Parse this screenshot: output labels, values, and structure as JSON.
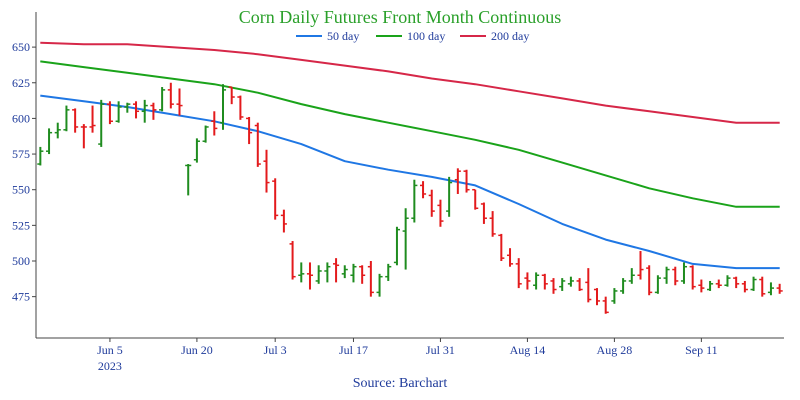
{
  "chart_data": {
    "type": "ohlc_with_moving_averages",
    "title": "Corn Daily Futures Front Month Continuous",
    "source": "Source: Barchart",
    "ylim": [
      446,
      662
    ],
    "yticks": [
      475,
      500,
      525,
      550,
      575,
      600,
      625,
      650
    ],
    "grid": false,
    "legend_position": "top",
    "x_tick_labels": [
      {
        "label": "Jun 5",
        "index": 8
      },
      {
        "label": "Jun 20",
        "index": 18
      },
      {
        "label": "Jul 3",
        "index": 27
      },
      {
        "label": "Jul 17",
        "index": 36
      },
      {
        "label": "Jul 31",
        "index": 46
      },
      {
        "label": "Aug 14",
        "index": 56
      },
      {
        "label": "Aug 28",
        "index": 66
      },
      {
        "label": "Sep 11",
        "index": 76
      }
    ],
    "year_label": {
      "label": "2023",
      "index": 8
    },
    "colors": {
      "up": "#1f8c1f",
      "down": "#e31a1c",
      "ma50": "#1f77e4",
      "ma100": "#1aa31a",
      "ma200": "#d62748",
      "text": "#1f3b9b",
      "title": "#2aa02a",
      "axis": "#444444"
    },
    "bars": [
      {
        "date": "2023-05-26",
        "o": 568,
        "h": 580,
        "l": 567,
        "c": 577,
        "dir": "up"
      },
      {
        "date": "2023-05-29",
        "o": 577,
        "h": 593,
        "l": 575,
        "c": 590,
        "dir": "up"
      },
      {
        "date": "2023-05-30",
        "o": 590,
        "h": 597,
        "l": 586,
        "c": 592,
        "dir": "up"
      },
      {
        "date": "2023-05-31",
        "o": 592,
        "h": 609,
        "l": 591,
        "c": 606,
        "dir": "up"
      },
      {
        "date": "2023-06-01",
        "o": 606,
        "h": 607,
        "l": 590,
        "c": 594,
        "dir": "down"
      },
      {
        "date": "2023-06-02",
        "o": 594,
        "h": 596,
        "l": 579,
        "c": 594,
        "dir": "down"
      },
      {
        "date": "2023-06-05",
        "o": 594,
        "h": 609,
        "l": 590,
        "c": 595,
        "dir": "down"
      },
      {
        "date": "2023-06-06",
        "o": 582,
        "h": 613,
        "l": 580,
        "c": 610,
        "dir": "up"
      },
      {
        "date": "2023-06-07",
        "o": 610,
        "h": 612,
        "l": 596,
        "c": 598,
        "dir": "down"
      },
      {
        "date": "2023-06-08",
        "o": 598,
        "h": 612,
        "l": 597,
        "c": 608,
        "dir": "up"
      },
      {
        "date": "2023-06-09",
        "o": 608,
        "h": 611,
        "l": 604,
        "c": 610,
        "dir": "up"
      },
      {
        "date": "2023-06-12",
        "o": 610,
        "h": 612,
        "l": 600,
        "c": 605,
        "dir": "down"
      },
      {
        "date": "2023-06-13",
        "o": 605,
        "h": 613,
        "l": 597,
        "c": 609,
        "dir": "up"
      },
      {
        "date": "2023-06-14",
        "o": 609,
        "h": 611,
        "l": 599,
        "c": 606,
        "dir": "down"
      },
      {
        "date": "2023-06-15",
        "o": 606,
        "h": 622,
        "l": 605,
        "c": 620,
        "dir": "up"
      },
      {
        "date": "2023-06-16",
        "o": 620,
        "h": 625,
        "l": 607,
        "c": 610,
        "dir": "down"
      },
      {
        "date": "2023-06-19",
        "o": 610,
        "h": 621,
        "l": 602,
        "c": 609,
        "dir": "down"
      },
      {
        "date": "2023-06-20",
        "o": 567,
        "h": 568,
        "l": 546,
        "c": 567,
        "dir": "up"
      },
      {
        "date": "2023-06-21",
        "o": 571,
        "h": 586,
        "l": 569,
        "c": 584,
        "dir": "up"
      },
      {
        "date": "2023-06-22",
        "o": 584,
        "h": 595,
        "l": 583,
        "c": 594,
        "dir": "up"
      },
      {
        "date": "2023-06-23",
        "o": 598,
        "h": 605,
        "l": 588,
        "c": 593,
        "dir": "down"
      },
      {
        "date": "2023-06-26",
        "o": 597,
        "h": 624,
        "l": 592,
        "c": 620,
        "dir": "up"
      },
      {
        "date": "2023-06-27",
        "o": 622,
        "h": 622,
        "l": 610,
        "c": 615,
        "dir": "down"
      },
      {
        "date": "2023-06-28",
        "o": 615,
        "h": 616,
        "l": 599,
        "c": 601,
        "dir": "down"
      },
      {
        "date": "2023-06-29",
        "o": 600,
        "h": 601,
        "l": 582,
        "c": 590,
        "dir": "down"
      },
      {
        "date": "2023-06-30",
        "o": 595,
        "h": 597,
        "l": 566,
        "c": 568,
        "dir": "down"
      },
      {
        "date": "2023-07-03",
        "o": 570,
        "h": 578,
        "l": 548,
        "c": 555,
        "dir": "down"
      },
      {
        "date": "2023-07-05",
        "o": 556,
        "h": 558,
        "l": 529,
        "c": 532,
        "dir": "down"
      },
      {
        "date": "2023-07-06",
        "o": 532,
        "h": 536,
        "l": 520,
        "c": 526,
        "dir": "down"
      },
      {
        "date": "2023-07-07",
        "o": 512,
        "h": 514,
        "l": 487,
        "c": 489,
        "dir": "down"
      },
      {
        "date": "2023-07-10",
        "o": 490,
        "h": 499,
        "l": 485,
        "c": 491,
        "dir": "up"
      },
      {
        "date": "2023-07-11",
        "o": 491,
        "h": 499,
        "l": 480,
        "c": 490,
        "dir": "down"
      },
      {
        "date": "2023-07-12",
        "o": 486,
        "h": 497,
        "l": 484,
        "c": 493,
        "dir": "up"
      },
      {
        "date": "2023-07-13",
        "o": 493,
        "h": 499,
        "l": 485,
        "c": 496,
        "dir": "up"
      },
      {
        "date": "2023-07-14",
        "o": 498,
        "h": 502,
        "l": 485,
        "c": 497,
        "dir": "down"
      },
      {
        "date": "2023-07-17",
        "o": 491,
        "h": 497,
        "l": 488,
        "c": 494,
        "dir": "up"
      },
      {
        "date": "2023-07-18",
        "o": 490,
        "h": 498,
        "l": 485,
        "c": 496,
        "dir": "up"
      },
      {
        "date": "2023-07-19",
        "o": 496,
        "h": 497,
        "l": 484,
        "c": 490,
        "dir": "down"
      },
      {
        "date": "2023-07-20",
        "o": 496,
        "h": 500,
        "l": 475,
        "c": 478,
        "dir": "down"
      },
      {
        "date": "2023-07-21",
        "o": 478,
        "h": 491,
        "l": 475,
        "c": 489,
        "dir": "up"
      },
      {
        "date": "2023-07-24",
        "o": 489,
        "h": 498,
        "l": 486,
        "c": 496,
        "dir": "up"
      },
      {
        "date": "2023-07-25",
        "o": 499,
        "h": 524,
        "l": 497,
        "c": 522,
        "dir": "up"
      },
      {
        "date": "2023-07-26",
        "o": 521,
        "h": 537,
        "l": 494,
        "c": 530,
        "dir": "up"
      },
      {
        "date": "2023-07-27",
        "o": 530,
        "h": 557,
        "l": 527,
        "c": 553,
        "dir": "up"
      },
      {
        "date": "2023-07-28",
        "o": 553,
        "h": 556,
        "l": 544,
        "c": 547,
        "dir": "down"
      },
      {
        "date": "2023-07-31",
        "o": 546,
        "h": 550,
        "l": 531,
        "c": 535,
        "dir": "down"
      },
      {
        "date": "2023-08-01",
        "o": 539,
        "h": 543,
        "l": 524,
        "c": 528,
        "dir": "down"
      },
      {
        "date": "2023-08-02",
        "o": 535,
        "h": 559,
        "l": 531,
        "c": 555,
        "dir": "up"
      },
      {
        "date": "2023-08-03",
        "o": 557,
        "h": 565,
        "l": 547,
        "c": 563,
        "dir": "down"
      },
      {
        "date": "2023-08-04",
        "o": 563,
        "h": 564,
        "l": 548,
        "c": 550,
        "dir": "down"
      },
      {
        "date": "2023-08-07",
        "o": 550,
        "h": 550,
        "l": 536,
        "c": 537,
        "dir": "down"
      },
      {
        "date": "2023-08-08",
        "o": 540,
        "h": 541,
        "l": 526,
        "c": 530,
        "dir": "down"
      },
      {
        "date": "2023-08-09",
        "o": 530,
        "h": 535,
        "l": 517,
        "c": 519,
        "dir": "down"
      },
      {
        "date": "2023-08-10",
        "o": 518,
        "h": 519,
        "l": 500,
        "c": 502,
        "dir": "down"
      },
      {
        "date": "2023-08-11",
        "o": 504,
        "h": 509,
        "l": 496,
        "c": 498,
        "dir": "down"
      },
      {
        "date": "2023-08-14",
        "o": 498,
        "h": 502,
        "l": 481,
        "c": 484,
        "dir": "down"
      },
      {
        "date": "2023-08-15",
        "o": 488,
        "h": 492,
        "l": 480,
        "c": 486,
        "dir": "down"
      },
      {
        "date": "2023-08-16",
        "o": 483,
        "h": 492,
        "l": 480,
        "c": 490,
        "dir": "up"
      },
      {
        "date": "2023-08-17",
        "o": 490,
        "h": 491,
        "l": 480,
        "c": 484,
        "dir": "down"
      },
      {
        "date": "2023-08-18",
        "o": 486,
        "h": 488,
        "l": 477,
        "c": 480,
        "dir": "down"
      },
      {
        "date": "2023-08-21",
        "o": 482,
        "h": 488,
        "l": 479,
        "c": 486,
        "dir": "up"
      },
      {
        "date": "2023-08-22",
        "o": 484,
        "h": 489,
        "l": 482,
        "c": 486,
        "dir": "up"
      },
      {
        "date": "2023-08-23",
        "o": 486,
        "h": 488,
        "l": 479,
        "c": 480,
        "dir": "down"
      },
      {
        "date": "2023-08-24",
        "o": 485,
        "h": 495,
        "l": 471,
        "c": 473,
        "dir": "down"
      },
      {
        "date": "2023-08-25",
        "o": 480,
        "h": 481,
        "l": 469,
        "c": 472,
        "dir": "down"
      },
      {
        "date": "2023-08-28",
        "o": 472,
        "h": 475,
        "l": 463,
        "c": 464,
        "dir": "down"
      },
      {
        "date": "2023-08-29",
        "o": 472,
        "h": 481,
        "l": 470,
        "c": 479,
        "dir": "up"
      },
      {
        "date": "2023-08-30",
        "o": 479,
        "h": 488,
        "l": 477,
        "c": 486,
        "dir": "up"
      },
      {
        "date": "2023-08-31",
        "o": 486,
        "h": 495,
        "l": 484,
        "c": 490,
        "dir": "up"
      },
      {
        "date": "2023-09-01",
        "o": 490,
        "h": 507,
        "l": 487,
        "c": 494,
        "dir": "down"
      },
      {
        "date": "2023-09-05",
        "o": 495,
        "h": 497,
        "l": 476,
        "c": 478,
        "dir": "down"
      },
      {
        "date": "2023-09-06",
        "o": 478,
        "h": 490,
        "l": 477,
        "c": 488,
        "dir": "up"
      },
      {
        "date": "2023-09-07",
        "o": 488,
        "h": 496,
        "l": 484,
        "c": 494,
        "dir": "up"
      },
      {
        "date": "2023-09-08",
        "o": 494,
        "h": 496,
        "l": 483,
        "c": 486,
        "dir": "down"
      },
      {
        "date": "2023-09-11",
        "o": 486,
        "h": 499,
        "l": 484,
        "c": 496,
        "dir": "up"
      },
      {
        "date": "2023-09-12",
        "o": 496,
        "h": 497,
        "l": 480,
        "c": 482,
        "dir": "down"
      },
      {
        "date": "2023-09-13",
        "o": 483,
        "h": 487,
        "l": 478,
        "c": 481,
        "dir": "down"
      },
      {
        "date": "2023-09-14",
        "o": 480,
        "h": 486,
        "l": 479,
        "c": 484,
        "dir": "up"
      },
      {
        "date": "2023-09-15",
        "o": 484,
        "h": 487,
        "l": 481,
        "c": 483,
        "dir": "down"
      },
      {
        "date": "2023-09-18",
        "o": 483,
        "h": 490,
        "l": 482,
        "c": 488,
        "dir": "up"
      },
      {
        "date": "2023-09-19",
        "o": 488,
        "h": 489,
        "l": 481,
        "c": 484,
        "dir": "down"
      },
      {
        "date": "2023-09-20",
        "o": 484,
        "h": 486,
        "l": 478,
        "c": 480,
        "dir": "down"
      },
      {
        "date": "2023-09-21",
        "o": 480,
        "h": 489,
        "l": 479,
        "c": 487,
        "dir": "up"
      },
      {
        "date": "2023-09-22",
        "o": 487,
        "h": 489,
        "l": 475,
        "c": 477,
        "dir": "down"
      },
      {
        "date": "2023-09-25",
        "o": 478,
        "h": 485,
        "l": 476,
        "c": 481,
        "dir": "up"
      },
      {
        "date": "2023-09-26",
        "o": 481,
        "h": 484,
        "l": 477,
        "c": 479,
        "dir": "down"
      }
    ],
    "series": [
      {
        "name": "50 day",
        "color_key": "ma50",
        "points": [
          [
            0,
            616
          ],
          [
            5,
            612
          ],
          [
            10,
            608
          ],
          [
            15,
            603
          ],
          [
            20,
            598
          ],
          [
            25,
            591
          ],
          [
            30,
            582
          ],
          [
            35,
            570
          ],
          [
            40,
            564
          ],
          [
            45,
            559
          ],
          [
            50,
            553
          ],
          [
            55,
            540
          ],
          [
            60,
            526
          ],
          [
            65,
            515
          ],
          [
            70,
            507
          ],
          [
            75,
            498
          ],
          [
            80,
            495
          ],
          [
            85,
            495
          ]
        ]
      },
      {
        "name": "100 day",
        "color_key": "ma100",
        "points": [
          [
            0,
            640
          ],
          [
            5,
            636
          ],
          [
            10,
            632
          ],
          [
            15,
            628
          ],
          [
            20,
            624
          ],
          [
            25,
            618
          ],
          [
            30,
            610
          ],
          [
            35,
            603
          ],
          [
            40,
            597
          ],
          [
            45,
            591
          ],
          [
            50,
            585
          ],
          [
            55,
            578
          ],
          [
            60,
            569
          ],
          [
            65,
            560
          ],
          [
            70,
            551
          ],
          [
            75,
            544
          ],
          [
            80,
            538
          ],
          [
            85,
            538
          ]
        ]
      },
      {
        "name": "200 day",
        "color_key": "ma200",
        "points": [
          [
            0,
            653
          ],
          [
            5,
            652
          ],
          [
            10,
            652
          ],
          [
            15,
            650
          ],
          [
            20,
            648
          ],
          [
            25,
            645
          ],
          [
            30,
            641
          ],
          [
            35,
            637
          ],
          [
            40,
            633
          ],
          [
            45,
            628
          ],
          [
            50,
            624
          ],
          [
            55,
            619
          ],
          [
            60,
            614
          ],
          [
            65,
            609
          ],
          [
            70,
            605
          ],
          [
            75,
            601
          ],
          [
            80,
            597
          ],
          [
            85,
            597
          ]
        ]
      }
    ]
  }
}
